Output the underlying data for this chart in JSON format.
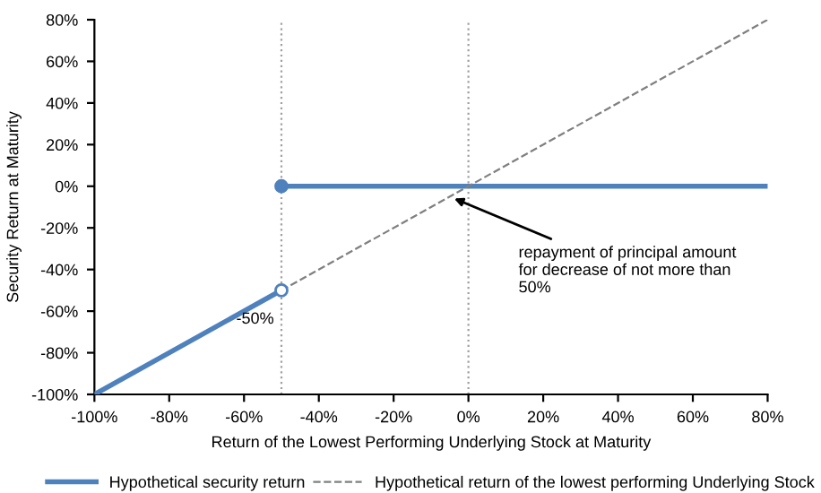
{
  "chart_data": {
    "type": "line",
    "xlabel": "Return of the Lowest Performing Underlying Stock at Maturity",
    "ylabel": "Security Return at Maturity",
    "series": [
      {
        "name": "Hypothetical security return",
        "color": "#4f81bd",
        "x": [
          -100,
          -50
        ],
        "values": [
          -100,
          -50
        ]
      },
      {
        "color": "#4f81bd",
        "x": [
          -50,
          80
        ],
        "values": [
          0,
          0
        ]
      },
      {
        "name": "Hypothetical return of the lowest performing Underlying Stock",
        "color": "#808080",
        "line_style": "dashed",
        "x": [
          -50,
          80
        ],
        "values": [
          -50,
          80
        ]
      },
      {
        "type": "scatter",
        "color": "#4f81bd",
        "colors": [
          "#ffffff",
          "#4f81bd"
        ],
        "x": [
          -50,
          -50
        ],
        "values": [
          -50,
          0
        ]
      }
    ],
    "xlim": [
      -100,
      80
    ],
    "ylim": [
      -100,
      80
    ],
    "xticks": [
      {
        "value": -100,
        "label": "-100%"
      },
      {
        "value": -80,
        "label": "-80%"
      },
      {
        "value": -60,
        "label": "-60%"
      },
      {
        "value": -40,
        "label": "-40%"
      },
      {
        "value": -20,
        "label": "-20%"
      },
      {
        "value": 0,
        "label": "0%"
      },
      {
        "value": 20,
        "label": "20%"
      },
      {
        "value": 40,
        "label": "40%"
      },
      {
        "value": 60,
        "label": "60%"
      },
      {
        "value": 80,
        "label": "80%"
      }
    ],
    "yticks": [
      {
        "value": -100,
        "label": "-100%"
      },
      {
        "value": -80,
        "label": "-80%"
      },
      {
        "value": -60,
        "label": "-60%"
      },
      {
        "value": -40,
        "label": "-40%"
      },
      {
        "value": -20,
        "label": "-20%"
      },
      {
        "value": 0,
        "label": "0%"
      },
      {
        "value": 20,
        "label": "20%"
      },
      {
        "value": 40,
        "label": "40%"
      },
      {
        "value": 60,
        "label": "60%"
      },
      {
        "value": 80,
        "label": "80%"
      }
    ],
    "ref_lines": [
      {
        "axis": "x",
        "value": -50,
        "label": "-50%",
        "color": "#a0a0a0",
        "line_style": "dotted"
      },
      {
        "axis": "x",
        "value": 0,
        "color": "#a0a0a0",
        "line_style": "dotted"
      }
    ],
    "annotations": [
      {
        "text": "repayment of principal amount\nfor decrease of not more than\n50%",
        "x": -5,
        "y": -5
      }
    ],
    "grid": false,
    "legend": "bottom"
  }
}
